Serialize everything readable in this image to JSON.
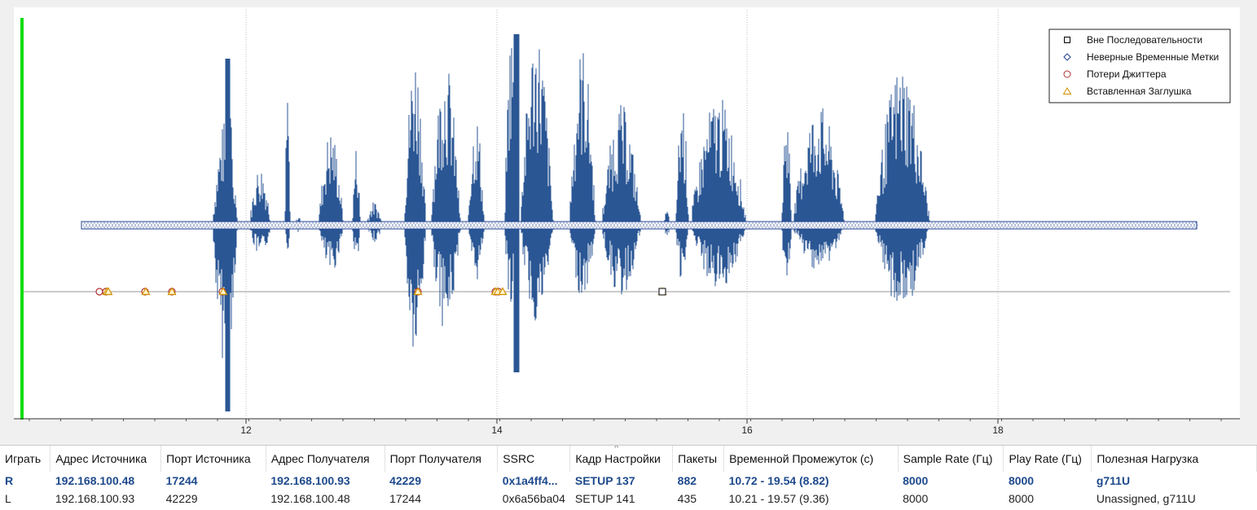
{
  "colors": {
    "waveform": "#2a5694",
    "play_cursor": "#11dd11",
    "out_of_sequence": "#000000",
    "wrong_timestamp": "#1f3f8f",
    "jitter_drop": "#b03030",
    "silence_inserted": "#d09000",
    "grid": "#c0c0c0"
  },
  "plot": {
    "x_ticks": [
      "12",
      "14",
      "16",
      "18"
    ],
    "legend": [
      {
        "marker": "square",
        "label": "Вне Последовательности"
      },
      {
        "marker": "diamond",
        "label": "Неверные Временные Метки"
      },
      {
        "marker": "circle",
        "label": "Потери Джиттера"
      },
      {
        "marker": "triangle",
        "label": "Вставленная Заглушка"
      }
    ]
  },
  "table": {
    "columns": [
      "Играть",
      "Адрес Источника",
      "Порт Источника",
      "Адрес Получателя",
      "Порт Получателя",
      "SSRC",
      "Кадр Настройки",
      "Пакеты",
      "Временной Промежуток (с)",
      "Sample Rate (Гц)",
      "Play Rate (Гц)",
      "Полезная Нагрузка"
    ],
    "sort_indicator": "^",
    "rows": [
      {
        "selected": true,
        "cells": [
          "R",
          "192.168.100.48",
          "17244",
          "192.168.100.93",
          "42229",
          "0x1a4ff4...",
          "SETUP 137",
          "882",
          "10.72 - 19.54 (8.82)",
          "8000",
          "8000",
          "g711U"
        ]
      },
      {
        "selected": false,
        "cells": [
          "L",
          "192.168.100.93",
          "42229",
          "192.168.100.48",
          "17244",
          "0x6a56ba04",
          "SETUP 141",
          "435",
          "10.21 - 19.57 (9.36)",
          "8000",
          "8000",
          "Unassigned, g711U"
        ]
      }
    ]
  }
}
